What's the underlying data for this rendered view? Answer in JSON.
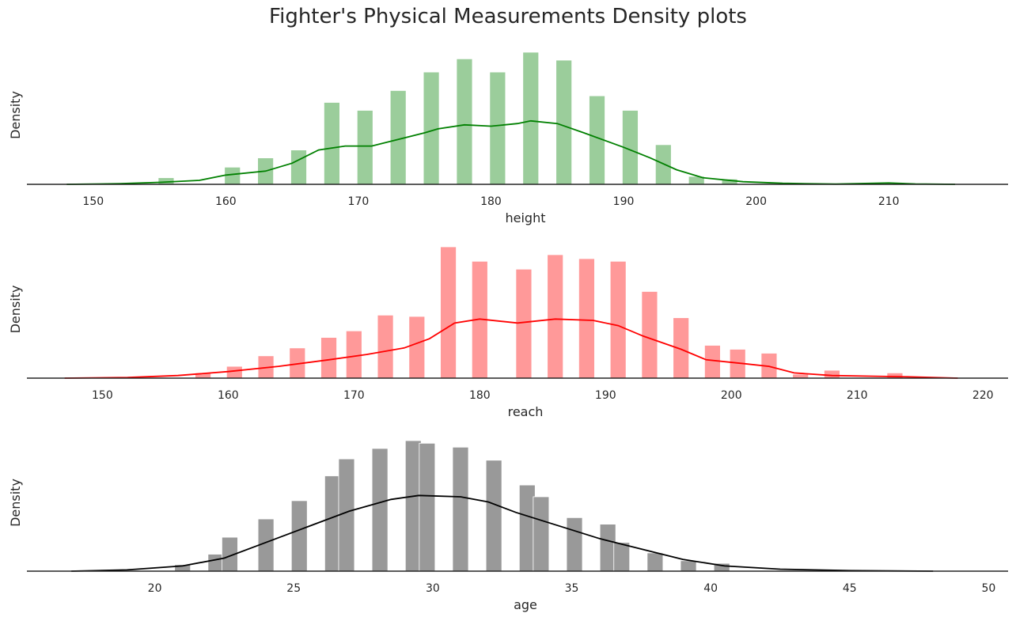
{
  "title": "Fighter's Physical Measurements Density plots",
  "chart_data": [
    {
      "type": "histogram+kde",
      "xlabel": "height",
      "ylabel": "Density",
      "xlim": [
        145,
        219
      ],
      "xticks": [
        150,
        160,
        170,
        180,
        190,
        200,
        210
      ],
      "bar_color": "#9bcd9b",
      "line_color": "#008000",
      "bins": [
        {
          "x": 155.5,
          "density": 0.05
        },
        {
          "x": 160.5,
          "density": 0.13
        },
        {
          "x": 163.0,
          "density": 0.2
        },
        {
          "x": 165.5,
          "density": 0.26
        },
        {
          "x": 168.0,
          "density": 0.62
        },
        {
          "x": 170.5,
          "density": 0.56
        },
        {
          "x": 173.0,
          "density": 0.71
        },
        {
          "x": 175.5,
          "density": 0.85
        },
        {
          "x": 178.0,
          "density": 0.95
        },
        {
          "x": 180.5,
          "density": 0.85
        },
        {
          "x": 183.0,
          "density": 1.0
        },
        {
          "x": 185.5,
          "density": 0.94
        },
        {
          "x": 188.0,
          "density": 0.67
        },
        {
          "x": 190.5,
          "density": 0.56
        },
        {
          "x": 193.0,
          "density": 0.3
        },
        {
          "x": 195.5,
          "density": 0.06
        },
        {
          "x": 198.0,
          "density": 0.04
        }
      ],
      "kde": [
        [
          148,
          0.0
        ],
        [
          152,
          0.005
        ],
        [
          155,
          0.015
        ],
        [
          158,
          0.03
        ],
        [
          160,
          0.07
        ],
        [
          163,
          0.1
        ],
        [
          165,
          0.16
        ],
        [
          167,
          0.26
        ],
        [
          169,
          0.29
        ],
        [
          171,
          0.29
        ],
        [
          173,
          0.34
        ],
        [
          175,
          0.39
        ],
        [
          176,
          0.42
        ],
        [
          178,
          0.45
        ],
        [
          180,
          0.44
        ],
        [
          182,
          0.46
        ],
        [
          183,
          0.48
        ],
        [
          185,
          0.46
        ],
        [
          187,
          0.39
        ],
        [
          190,
          0.28
        ],
        [
          192,
          0.2
        ],
        [
          194,
          0.11
        ],
        [
          196,
          0.05
        ],
        [
          199,
          0.02
        ],
        [
          202,
          0.008
        ],
        [
          206,
          0.002
        ],
        [
          210,
          0.01
        ],
        [
          212,
          0.003
        ],
        [
          215,
          0.0
        ]
      ]
    },
    {
      "type": "histogram+kde",
      "xlabel": "reach",
      "ylabel": "Density",
      "xlim": [
        144,
        222
      ],
      "xticks": [
        150,
        160,
        170,
        180,
        190,
        200,
        210,
        220
      ],
      "bar_color": "#ff9999",
      "line_color": "#ff0000",
      "bins": [
        {
          "x": 158.0,
          "density": 0.04
        },
        {
          "x": 160.5,
          "density": 0.09
        },
        {
          "x": 163.0,
          "density": 0.17
        },
        {
          "x": 165.5,
          "density": 0.23
        },
        {
          "x": 168.0,
          "density": 0.31
        },
        {
          "x": 170.0,
          "density": 0.36
        },
        {
          "x": 172.5,
          "density": 0.48
        },
        {
          "x": 175.0,
          "density": 0.47
        },
        {
          "x": 177.5,
          "density": 1.0
        },
        {
          "x": 180.0,
          "density": 0.89
        },
        {
          "x": 183.5,
          "density": 0.83
        },
        {
          "x": 186.0,
          "density": 0.94
        },
        {
          "x": 188.5,
          "density": 0.91
        },
        {
          "x": 191.0,
          "density": 0.89
        },
        {
          "x": 193.5,
          "density": 0.66
        },
        {
          "x": 196.0,
          "density": 0.46
        },
        {
          "x": 198.5,
          "density": 0.25
        },
        {
          "x": 200.5,
          "density": 0.22
        },
        {
          "x": 203.0,
          "density": 0.19
        },
        {
          "x": 205.5,
          "density": 0.03
        },
        {
          "x": 208.0,
          "density": 0.06
        },
        {
          "x": 213.0,
          "density": 0.04
        }
      ],
      "kde": [
        [
          147,
          0.0
        ],
        [
          152,
          0.005
        ],
        [
          156,
          0.02
        ],
        [
          160,
          0.05
        ],
        [
          164,
          0.09
        ],
        [
          168,
          0.14
        ],
        [
          171,
          0.18
        ],
        [
          174,
          0.23
        ],
        [
          176,
          0.3
        ],
        [
          178,
          0.42
        ],
        [
          180,
          0.45
        ],
        [
          183,
          0.42
        ],
        [
          186,
          0.45
        ],
        [
          189,
          0.44
        ],
        [
          191,
          0.4
        ],
        [
          193,
          0.32
        ],
        [
          196,
          0.22
        ],
        [
          198,
          0.14
        ],
        [
          201,
          0.11
        ],
        [
          203,
          0.09
        ],
        [
          205,
          0.04
        ],
        [
          208,
          0.02
        ],
        [
          211,
          0.015
        ],
        [
          214,
          0.01
        ],
        [
          218,
          0.0
        ]
      ]
    },
    {
      "type": "histogram+kde",
      "xlabel": "age",
      "ylabel": "Density",
      "xlim": [
        15.4,
        50.7
      ],
      "xticks": [
        20,
        25,
        30,
        35,
        40,
        45,
        50
      ],
      "bar_color": "#999999",
      "line_color": "#000000",
      "bins": [
        {
          "x": 21.0,
          "density": 0.05
        },
        {
          "x": 22.2,
          "density": 0.13
        },
        {
          "x": 22.7,
          "density": 0.26
        },
        {
          "x": 24.0,
          "density": 0.4
        },
        {
          "x": 25.2,
          "density": 0.54
        },
        {
          "x": 26.4,
          "density": 0.73
        },
        {
          "x": 26.9,
          "density": 0.86
        },
        {
          "x": 28.1,
          "density": 0.94
        },
        {
          "x": 29.3,
          "density": 1.0
        },
        {
          "x": 29.8,
          "density": 0.98
        },
        {
          "x": 31.0,
          "density": 0.95
        },
        {
          "x": 32.2,
          "density": 0.85
        },
        {
          "x": 33.4,
          "density": 0.66
        },
        {
          "x": 33.9,
          "density": 0.57
        },
        {
          "x": 35.1,
          "density": 0.41
        },
        {
          "x": 36.3,
          "density": 0.36
        },
        {
          "x": 36.8,
          "density": 0.22
        },
        {
          "x": 38.0,
          "density": 0.14
        },
        {
          "x": 39.2,
          "density": 0.08
        },
        {
          "x": 40.4,
          "density": 0.06
        }
      ],
      "kde": [
        [
          17,
          0.0
        ],
        [
          19,
          0.01
        ],
        [
          21,
          0.04
        ],
        [
          22.5,
          0.1
        ],
        [
          24,
          0.22
        ],
        [
          25.5,
          0.34
        ],
        [
          27,
          0.46
        ],
        [
          28.5,
          0.55
        ],
        [
          29.5,
          0.58
        ],
        [
          31,
          0.57
        ],
        [
          32,
          0.53
        ],
        [
          33,
          0.45
        ],
        [
          34.5,
          0.35
        ],
        [
          36,
          0.25
        ],
        [
          37.5,
          0.17
        ],
        [
          39,
          0.09
        ],
        [
          40.5,
          0.04
        ],
        [
          42.5,
          0.015
        ],
        [
          45,
          0.004
        ],
        [
          48,
          0.0
        ]
      ]
    }
  ]
}
